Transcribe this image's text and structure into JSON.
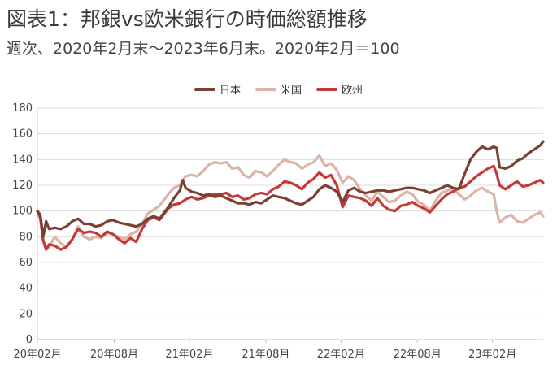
{
  "title": "図表1：邦銀vs欧米銀行の時価総額推移",
  "subtitle": "週次、2020年2月末～2023年6月末。2020年2月＝100",
  "colors": {
    "japan": "#7b3f33",
    "us": "#dcb3a7",
    "europe": "#c33a36",
    "grid": "#dcdcdc"
  },
  "chart_data": {
    "type": "line",
    "title": "図表1：邦銀vs欧米銀行の時価総額推移",
    "subtitle": "週次、2020年2月末～2023年6月末。2020年2月＝100",
    "xlabel": "",
    "ylabel": "",
    "ylim": [
      0,
      180
    ],
    "yticks": [
      0,
      20,
      40,
      60,
      80,
      100,
      120,
      140,
      160,
      180
    ],
    "x_range": [
      "2020-02",
      "2023-06"
    ],
    "xticks": [
      "20年02月",
      "20年08月",
      "21年02月",
      "21年08月",
      "22年02月",
      "22年08月",
      "23年02月"
    ],
    "legend": "top",
    "grid": "horizontal",
    "series": [
      {
        "name": "日本",
        "color": "#7b3f33",
        "points": [
          [
            "2020-02-28",
            100
          ],
          [
            "2020-03-06",
            97
          ],
          [
            "2020-03-13",
            80
          ],
          [
            "2020-03-20",
            92
          ],
          [
            "2020-03-27",
            86
          ],
          [
            "2020-04-10",
            87
          ],
          [
            "2020-04-24",
            86
          ],
          [
            "2020-05-08",
            88
          ],
          [
            "2020-05-22",
            92
          ],
          [
            "2020-06-05",
            94
          ],
          [
            "2020-06-19",
            90
          ],
          [
            "2020-07-03",
            90
          ],
          [
            "2020-07-17",
            88
          ],
          [
            "2020-07-31",
            89
          ],
          [
            "2020-08-14",
            92
          ],
          [
            "2020-08-28",
            93
          ],
          [
            "2020-09-11",
            91
          ],
          [
            "2020-09-25",
            90
          ],
          [
            "2020-10-09",
            89
          ],
          [
            "2020-10-23",
            88
          ],
          [
            "2020-11-06",
            90
          ],
          [
            "2020-11-20",
            94
          ],
          [
            "2020-12-04",
            96
          ],
          [
            "2020-12-18",
            94
          ],
          [
            "2021-01-08",
            103
          ],
          [
            "2021-01-22",
            110
          ],
          [
            "2021-02-05",
            116
          ],
          [
            "2021-02-12",
            124
          ],
          [
            "2021-02-19",
            118
          ],
          [
            "2021-03-05",
            115
          ],
          [
            "2021-03-19",
            114
          ],
          [
            "2021-04-02",
            112
          ],
          [
            "2021-04-16",
            113
          ],
          [
            "2021-04-30",
            111
          ],
          [
            "2021-05-14",
            112
          ],
          [
            "2021-05-28",
            110
          ],
          [
            "2021-06-11",
            108
          ],
          [
            "2021-06-25",
            106
          ],
          [
            "2021-07-09",
            106
          ],
          [
            "2021-07-23",
            105
          ],
          [
            "2021-08-06",
            107
          ],
          [
            "2021-08-20",
            106
          ],
          [
            "2021-09-03",
            109
          ],
          [
            "2021-09-17",
            112
          ],
          [
            "2021-10-01",
            111
          ],
          [
            "2021-10-15",
            110
          ],
          [
            "2021-10-29",
            108
          ],
          [
            "2021-11-12",
            106
          ],
          [
            "2021-11-26",
            105
          ],
          [
            "2021-12-10",
            108
          ],
          [
            "2021-12-24",
            111
          ],
          [
            "2022-01-07",
            117
          ],
          [
            "2022-01-21",
            120
          ],
          [
            "2022-02-04",
            118
          ],
          [
            "2022-02-18",
            115
          ],
          [
            "2022-03-04",
            107
          ],
          [
            "2022-03-18",
            116
          ],
          [
            "2022-04-01",
            118
          ],
          [
            "2022-04-15",
            115
          ],
          [
            "2022-04-29",
            114
          ],
          [
            "2022-05-13",
            115
          ],
          [
            "2022-05-27",
            116
          ],
          [
            "2022-06-10",
            116
          ],
          [
            "2022-06-24",
            115
          ],
          [
            "2022-07-08",
            116
          ],
          [
            "2022-07-22",
            117
          ],
          [
            "2022-08-05",
            118
          ],
          [
            "2022-08-19",
            118
          ],
          [
            "2022-09-02",
            117
          ],
          [
            "2022-09-16",
            116
          ],
          [
            "2022-09-30",
            114
          ],
          [
            "2022-10-14",
            116
          ],
          [
            "2022-10-28",
            118
          ],
          [
            "2022-11-11",
            120
          ],
          [
            "2022-11-25",
            118
          ],
          [
            "2022-12-09",
            117
          ],
          [
            "2022-12-23",
            129
          ],
          [
            "2023-01-06",
            140
          ],
          [
            "2023-01-20",
            146
          ],
          [
            "2023-02-03",
            150
          ],
          [
            "2023-02-17",
            148
          ],
          [
            "2023-03-03",
            150
          ],
          [
            "2023-03-10",
            149
          ],
          [
            "2023-03-17",
            134
          ],
          [
            "2023-03-31",
            133
          ],
          [
            "2023-04-14",
            135
          ],
          [
            "2023-04-28",
            139
          ],
          [
            "2023-05-12",
            141
          ],
          [
            "2023-05-26",
            145
          ],
          [
            "2023-06-09",
            148
          ],
          [
            "2023-06-23",
            151
          ],
          [
            "2023-06-30",
            154
          ]
        ]
      },
      {
        "name": "米国",
        "color": "#dcb3a7",
        "points": [
          [
            "2020-02-28",
            100
          ],
          [
            "2020-03-06",
            93
          ],
          [
            "2020-03-13",
            78
          ],
          [
            "2020-03-20",
            70
          ],
          [
            "2020-03-27",
            72
          ],
          [
            "2020-04-10",
            80
          ],
          [
            "2020-04-24",
            75
          ],
          [
            "2020-05-08",
            72
          ],
          [
            "2020-05-22",
            78
          ],
          [
            "2020-06-05",
            88
          ],
          [
            "2020-06-19",
            80
          ],
          [
            "2020-07-03",
            78
          ],
          [
            "2020-07-17",
            80
          ],
          [
            "2020-07-31",
            79
          ],
          [
            "2020-08-14",
            83
          ],
          [
            "2020-08-28",
            82
          ],
          [
            "2020-09-11",
            80
          ],
          [
            "2020-09-25",
            78
          ],
          [
            "2020-10-09",
            82
          ],
          [
            "2020-10-23",
            84
          ],
          [
            "2020-11-06",
            90
          ],
          [
            "2020-11-20",
            98
          ],
          [
            "2020-12-04",
            101
          ],
          [
            "2020-12-18",
            104
          ],
          [
            "2021-01-08",
            113
          ],
          [
            "2021-01-22",
            118
          ],
          [
            "2021-02-05",
            120
          ],
          [
            "2021-02-19",
            127
          ],
          [
            "2021-03-05",
            128
          ],
          [
            "2021-03-19",
            127
          ],
          [
            "2021-04-02",
            131
          ],
          [
            "2021-04-16",
            136
          ],
          [
            "2021-04-30",
            138
          ],
          [
            "2021-05-14",
            137
          ],
          [
            "2021-05-28",
            138
          ],
          [
            "2021-06-11",
            133
          ],
          [
            "2021-06-25",
            134
          ],
          [
            "2021-07-09",
            128
          ],
          [
            "2021-07-23",
            126
          ],
          [
            "2021-08-06",
            131
          ],
          [
            "2021-08-20",
            130
          ],
          [
            "2021-09-03",
            127
          ],
          [
            "2021-09-17",
            131
          ],
          [
            "2021-10-01",
            136
          ],
          [
            "2021-10-15",
            140
          ],
          [
            "2021-10-29",
            138
          ],
          [
            "2021-11-12",
            137
          ],
          [
            "2021-11-26",
            133
          ],
          [
            "2021-12-10",
            136
          ],
          [
            "2021-12-24",
            138
          ],
          [
            "2022-01-07",
            143
          ],
          [
            "2022-01-21",
            135
          ],
          [
            "2022-02-04",
            137
          ],
          [
            "2022-02-18",
            132
          ],
          [
            "2022-03-04",
            122
          ],
          [
            "2022-03-18",
            127
          ],
          [
            "2022-04-01",
            124
          ],
          [
            "2022-04-15",
            117
          ],
          [
            "2022-04-29",
            112
          ],
          [
            "2022-05-13",
            108
          ],
          [
            "2022-05-27",
            115
          ],
          [
            "2022-06-10",
            111
          ],
          [
            "2022-06-24",
            107
          ],
          [
            "2022-07-08",
            108
          ],
          [
            "2022-07-22",
            112
          ],
          [
            "2022-08-05",
            115
          ],
          [
            "2022-08-19",
            113
          ],
          [
            "2022-09-02",
            107
          ],
          [
            "2022-09-16",
            105
          ],
          [
            "2022-09-30",
            100
          ],
          [
            "2022-10-14",
            108
          ],
          [
            "2022-10-28",
            114
          ],
          [
            "2022-11-11",
            116
          ],
          [
            "2022-11-25",
            117
          ],
          [
            "2022-12-09",
            113
          ],
          [
            "2022-12-23",
            109
          ],
          [
            "2023-01-06",
            112
          ],
          [
            "2023-01-20",
            116
          ],
          [
            "2023-02-03",
            118
          ],
          [
            "2023-02-17",
            115
          ],
          [
            "2023-03-03",
            113
          ],
          [
            "2023-03-10",
            100
          ],
          [
            "2023-03-17",
            91
          ],
          [
            "2023-03-31",
            95
          ],
          [
            "2023-04-14",
            97
          ],
          [
            "2023-04-28",
            92
          ],
          [
            "2023-05-12",
            91
          ],
          [
            "2023-05-26",
            94
          ],
          [
            "2023-06-09",
            97
          ],
          [
            "2023-06-23",
            99
          ],
          [
            "2023-06-30",
            96
          ]
        ]
      },
      {
        "name": "欧州",
        "color": "#c33a36",
        "points": [
          [
            "2020-02-28",
            100
          ],
          [
            "2020-03-06",
            95
          ],
          [
            "2020-03-13",
            77
          ],
          [
            "2020-03-20",
            70
          ],
          [
            "2020-03-27",
            74
          ],
          [
            "2020-04-10",
            73
          ],
          [
            "2020-04-24",
            70
          ],
          [
            "2020-05-08",
            72
          ],
          [
            "2020-05-22",
            78
          ],
          [
            "2020-06-05",
            86
          ],
          [
            "2020-06-19",
            83
          ],
          [
            "2020-07-03",
            84
          ],
          [
            "2020-07-17",
            83
          ],
          [
            "2020-07-31",
            80
          ],
          [
            "2020-08-14",
            84
          ],
          [
            "2020-08-28",
            82
          ],
          [
            "2020-09-11",
            78
          ],
          [
            "2020-09-25",
            75
          ],
          [
            "2020-10-09",
            79
          ],
          [
            "2020-10-23",
            76
          ],
          [
            "2020-11-06",
            86
          ],
          [
            "2020-11-20",
            93
          ],
          [
            "2020-12-04",
            95
          ],
          [
            "2020-12-18",
            93
          ],
          [
            "2021-01-08",
            102
          ],
          [
            "2021-01-22",
            105
          ],
          [
            "2021-02-05",
            106
          ],
          [
            "2021-02-19",
            109
          ],
          [
            "2021-03-05",
            111
          ],
          [
            "2021-03-19",
            109
          ],
          [
            "2021-04-02",
            110
          ],
          [
            "2021-04-16",
            112
          ],
          [
            "2021-04-30",
            113
          ],
          [
            "2021-05-14",
            113
          ],
          [
            "2021-05-28",
            114
          ],
          [
            "2021-06-11",
            111
          ],
          [
            "2021-06-25",
            112
          ],
          [
            "2021-07-09",
            109
          ],
          [
            "2021-07-23",
            110
          ],
          [
            "2021-08-06",
            113
          ],
          [
            "2021-08-20",
            114
          ],
          [
            "2021-09-03",
            113
          ],
          [
            "2021-09-17",
            117
          ],
          [
            "2021-10-01",
            119
          ],
          [
            "2021-10-15",
            123
          ],
          [
            "2021-10-29",
            122
          ],
          [
            "2021-11-12",
            120
          ],
          [
            "2021-11-26",
            117
          ],
          [
            "2021-12-10",
            122
          ],
          [
            "2021-12-24",
            125
          ],
          [
            "2022-01-07",
            130
          ],
          [
            "2022-01-21",
            126
          ],
          [
            "2022-02-04",
            128
          ],
          [
            "2022-02-18",
            120
          ],
          [
            "2022-03-04",
            103
          ],
          [
            "2022-03-18",
            112
          ],
          [
            "2022-04-01",
            111
          ],
          [
            "2022-04-15",
            110
          ],
          [
            "2022-04-29",
            108
          ],
          [
            "2022-05-13",
            104
          ],
          [
            "2022-05-27",
            110
          ],
          [
            "2022-06-10",
            104
          ],
          [
            "2022-06-24",
            101
          ],
          [
            "2022-07-08",
            100
          ],
          [
            "2022-07-22",
            104
          ],
          [
            "2022-08-05",
            105
          ],
          [
            "2022-08-19",
            107
          ],
          [
            "2022-09-02",
            104
          ],
          [
            "2022-09-16",
            102
          ],
          [
            "2022-09-30",
            99
          ],
          [
            "2022-10-14",
            104
          ],
          [
            "2022-10-28",
            109
          ],
          [
            "2022-11-11",
            113
          ],
          [
            "2022-11-25",
            115
          ],
          [
            "2022-12-09",
            118
          ],
          [
            "2022-12-23",
            119
          ],
          [
            "2023-01-06",
            123
          ],
          [
            "2023-01-20",
            127
          ],
          [
            "2023-02-03",
            130
          ],
          [
            "2023-02-17",
            133
          ],
          [
            "2023-03-03",
            135
          ],
          [
            "2023-03-10",
            129
          ],
          [
            "2023-03-17",
            120
          ],
          [
            "2023-03-31",
            117
          ],
          [
            "2023-04-14",
            120
          ],
          [
            "2023-04-28",
            123
          ],
          [
            "2023-05-12",
            119
          ],
          [
            "2023-05-26",
            120
          ],
          [
            "2023-06-09",
            122
          ],
          [
            "2023-06-23",
            124
          ],
          [
            "2023-06-30",
            122
          ]
        ]
      }
    ]
  }
}
